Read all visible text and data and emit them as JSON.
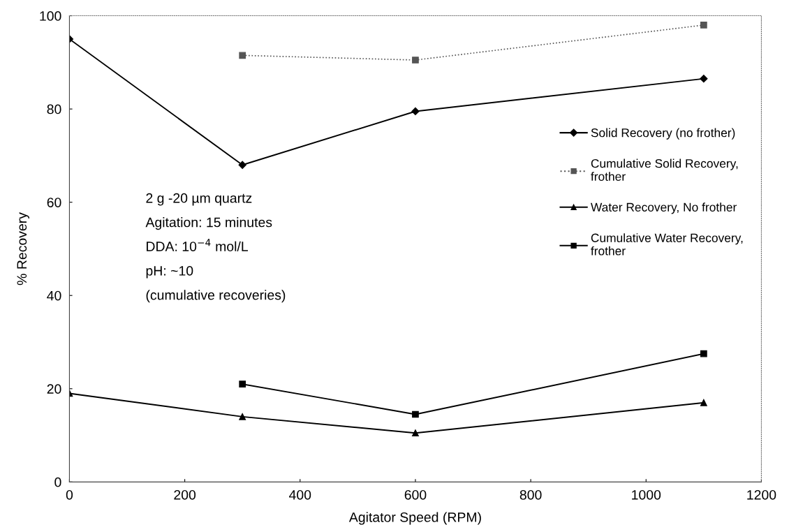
{
  "chart_data": {
    "type": "line",
    "xlabel": "Agitator Speed (RPM)",
    "ylabel": "% Recovery",
    "xlim": [
      0,
      1200
    ],
    "xticks": [
      0,
      200,
      400,
      600,
      800,
      1000,
      1200
    ],
    "ylim": [
      0,
      100
    ],
    "yticks": [
      0,
      20,
      40,
      60,
      80,
      100
    ],
    "grid": false,
    "legend": "right",
    "annotations": [
      "2 g -20 µm quartz",
      "Agitation: 15 minutes",
      "DDA: 10$^{−4}$ mol/L",
      "pH: ~10",
      "(cumulative recoveries)"
    ],
    "series": [
      {
        "name": "Solid Recovery (no frother)",
        "color": "#000000",
        "marker": "diamond",
        "line_style": "solid",
        "x": [
          0,
          300,
          600,
          1100
        ],
        "values": [
          95,
          68,
          79.5,
          86.5
        ]
      },
      {
        "name": "Cumulative Solid Recovery,\nfrother",
        "color": "#555555",
        "marker": "square",
        "line_style": "dotted",
        "x": [
          300,
          600,
          1100
        ],
        "values": [
          91.5,
          90.5,
          98
        ]
      },
      {
        "name": "Water Recovery, No frother",
        "color": "#000000",
        "marker": "triangle",
        "line_style": "solid",
        "x": [
          0,
          300,
          600,
          1100
        ],
        "values": [
          19,
          14,
          10.5,
          17
        ]
      },
      {
        "name": "Cumulative Water Recovery,\nfrother",
        "color": "#000000",
        "marker": "square",
        "line_style": "solid",
        "x": [
          300,
          600,
          1100
        ],
        "values": [
          21,
          14.5,
          27.5
        ]
      }
    ]
  }
}
